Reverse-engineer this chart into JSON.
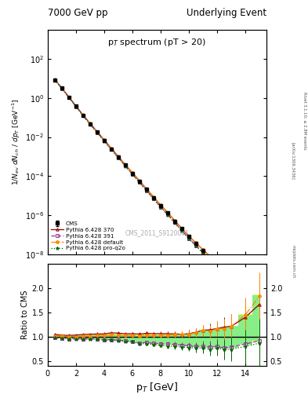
{
  "title_left": "7000 GeV pp",
  "title_right": "Underlying Event",
  "plot_title": "p$_T$ spectrum (pT > 20)",
  "xlabel": "p$_T$ [GeV]",
  "ylabel_main": "1/N$_{ev}$ dN$_{ch}$ / dp$_T$ [GeV$^{-1}$]",
  "ylabel_ratio": "Ratio to CMS",
  "watermark": "CMS_2011_S9120041",
  "right_label1": "Rivet 3.1.10; ≥ 2.8M events",
  "right_label2": "[arXiv:1306.3436]",
  "right_label3": "mcplots.cern.ch",
  "cms_x": [
    0.5,
    1.0,
    1.5,
    2.0,
    2.5,
    3.0,
    3.5,
    4.0,
    4.5,
    5.0,
    5.5,
    6.0,
    6.5,
    7.0,
    7.5,
    8.0,
    8.5,
    9.0,
    9.5,
    10.0,
    10.5,
    11.0,
    11.5,
    12.0,
    12.5,
    13.0,
    14.0,
    15.0
  ],
  "cms_y": [
    8.5,
    3.2,
    1.1,
    0.38,
    0.13,
    0.048,
    0.018,
    0.0068,
    0.0025,
    0.00095,
    0.00036,
    0.00014,
    5.5e-05,
    2.1e-05,
    8e-06,
    3.1e-06,
    1.3e-06,
    5e-07,
    2e-07,
    8e-08,
    3.5e-08,
    1.5e-08,
    7e-09,
    3e-09,
    1.5e-09,
    7e-10,
    2e-10,
    6e-11
  ],
  "cms_yerr": [
    0.25,
    0.09,
    0.032,
    0.011,
    0.004,
    0.0015,
    0.00055,
    0.00021,
    7.5e-05,
    2.9e-05,
    1.1e-05,
    4.3e-06,
    1.7e-06,
    6.5e-07,
    2.5e-07,
    9.5e-08,
    4e-08,
    1.5e-08,
    6e-09,
    2.4e-09,
    1.1e-09,
    4.5e-10,
    2.1e-10,
    9e-11,
    4.5e-11,
    2.1e-11,
    6e-12,
    1.8e-12
  ],
  "py370_x": [
    0.5,
    1.0,
    1.5,
    2.0,
    2.5,
    3.0,
    3.5,
    4.0,
    4.5,
    5.0,
    5.5,
    6.0,
    6.5,
    7.0,
    7.5,
    8.0,
    8.5,
    9.0,
    9.5,
    10.0,
    10.5,
    11.0,
    11.5,
    12.0,
    12.5,
    13.0,
    14.0,
    15.0
  ],
  "py370_y": [
    8.9,
    3.3,
    1.13,
    0.393,
    0.136,
    0.0505,
    0.019,
    0.0072,
    0.0027,
    0.00102,
    0.000382,
    0.000149,
    5.8e-05,
    2.25e-05,
    8.5e-06,
    3.3e-06,
    1.38e-06,
    5.3e-07,
    2.1e-07,
    8.5e-08,
    3.82e-08,
    1.7e-08,
    8e-09,
    3.5e-09,
    1.8e-09,
    8.5e-10,
    2.8e-10,
    1e-10
  ],
  "py391_x": [
    0.5,
    1.0,
    1.5,
    2.0,
    2.5,
    3.0,
    3.5,
    4.0,
    4.5,
    5.0,
    5.5,
    6.0,
    6.5,
    7.0,
    7.5,
    8.0,
    8.5,
    9.0,
    9.5,
    10.0,
    10.5,
    11.0,
    11.5,
    12.0,
    12.5,
    13.0,
    14.0,
    15.0
  ],
  "py391_y": [
    8.4,
    3.1,
    1.05,
    0.365,
    0.124,
    0.046,
    0.0172,
    0.0064,
    0.00235,
    0.00088,
    0.00033,
    0.000126,
    4.8e-05,
    1.85e-05,
    6.9e-06,
    2.65e-06,
    1.1e-06,
    4.2e-07,
    1.65e-07,
    6.5e-08,
    2.8e-08,
    1.2e-08,
    5.5e-09,
    2.4e-09,
    1.15e-09,
    5.5e-10,
    1.7e-10,
    5.5e-11
  ],
  "pydef_x": [
    0.5,
    1.0,
    1.5,
    2.0,
    2.5,
    3.0,
    3.5,
    4.0,
    4.5,
    5.0,
    5.5,
    6.0,
    6.5,
    7.0,
    7.5,
    8.0,
    8.5,
    9.0,
    9.5,
    10.0,
    10.5,
    11.0,
    11.5,
    12.0,
    12.5,
    13.0,
    14.0,
    15.0
  ],
  "pydef_y": [
    8.6,
    3.25,
    1.1,
    0.38,
    0.131,
    0.049,
    0.0185,
    0.007,
    0.0026,
    0.00098,
    0.00037,
    0.000144,
    5.6e-05,
    2.18e-05,
    8.2e-06,
    3.2e-06,
    1.35e-06,
    5.2e-07,
    2.1e-07,
    8.4e-08,
    3.8e-08,
    1.7e-08,
    7.8e-09,
    3.5e-09,
    1.75e-09,
    8.5e-10,
    2.9e-10,
    1.1e-10
  ],
  "pyq2o_x": [
    0.5,
    1.0,
    1.5,
    2.0,
    2.5,
    3.0,
    3.5,
    4.0,
    4.5,
    5.0,
    5.5,
    6.0,
    6.5,
    7.0,
    7.5,
    8.0,
    8.5,
    9.0,
    9.5,
    10.0,
    10.5,
    11.0,
    11.5,
    12.0,
    12.5,
    13.0,
    14.0,
    15.0
  ],
  "pyq2o_y": [
    8.3,
    3.1,
    1.05,
    0.363,
    0.124,
    0.0456,
    0.017,
    0.0063,
    0.00232,
    0.00087,
    0.000325,
    0.000125,
    4.7e-05,
    1.8e-05,
    6.7e-06,
    2.55e-06,
    1.05e-06,
    4e-07,
    1.58e-07,
    6.2e-08,
    2.7e-08,
    1.15e-08,
    5.2e-09,
    2.3e-09,
    1.1e-09,
    5.2e-10,
    1.6e-10,
    5.2e-11
  ],
  "py370_ratio": [
    1.047,
    1.031,
    1.027,
    1.034,
    1.046,
    1.052,
    1.056,
    1.059,
    1.08,
    1.074,
    1.061,
    1.064,
    1.055,
    1.071,
    1.063,
    1.065,
    1.062,
    1.06,
    1.05,
    1.0625,
    1.091,
    1.133,
    1.143,
    1.167,
    1.2,
    1.214,
    1.4,
    1.667
  ],
  "py391_ratio": [
    0.988,
    0.969,
    0.955,
    0.961,
    0.954,
    0.958,
    0.956,
    0.941,
    0.94,
    0.926,
    0.917,
    0.9,
    0.873,
    0.881,
    0.863,
    0.855,
    0.846,
    0.84,
    0.825,
    0.8125,
    0.8,
    0.8,
    0.786,
    0.8,
    0.767,
    0.786,
    0.85,
    0.917
  ],
  "pydef_ratio": [
    1.012,
    1.016,
    1.0,
    1.0,
    1.008,
    1.021,
    1.028,
    1.029,
    1.04,
    1.032,
    1.028,
    1.029,
    1.018,
    1.038,
    1.025,
    1.032,
    1.038,
    1.04,
    1.05,
    1.05,
    1.086,
    1.133,
    1.114,
    1.167,
    1.167,
    1.214,
    1.45,
    1.833
  ],
  "pyq2o_ratio": [
    0.976,
    0.969,
    0.955,
    0.955,
    0.954,
    0.95,
    0.944,
    0.926,
    0.928,
    0.916,
    0.903,
    0.893,
    0.855,
    0.857,
    0.838,
    0.823,
    0.808,
    0.8,
    0.79,
    0.775,
    0.771,
    0.767,
    0.743,
    0.767,
    0.733,
    0.743,
    0.8,
    0.867
  ],
  "py370_rerr": [
    0.02,
    0.018,
    0.016,
    0.015,
    0.016,
    0.017,
    0.018,
    0.019,
    0.022,
    0.023,
    0.025,
    0.027,
    0.03,
    0.033,
    0.038,
    0.042,
    0.048,
    0.055,
    0.065,
    0.075,
    0.09,
    0.11,
    0.13,
    0.16,
    0.2,
    0.25,
    0.35,
    0.5
  ],
  "py391_rerr": [
    0.02,
    0.018,
    0.016,
    0.015,
    0.016,
    0.017,
    0.018,
    0.019,
    0.022,
    0.023,
    0.025,
    0.027,
    0.03,
    0.033,
    0.038,
    0.042,
    0.048,
    0.055,
    0.065,
    0.075,
    0.09,
    0.11,
    0.13,
    0.16,
    0.2,
    0.25,
    0.35,
    0.5
  ],
  "pydef_rerr": [
    0.02,
    0.018,
    0.016,
    0.015,
    0.016,
    0.017,
    0.018,
    0.019,
    0.022,
    0.023,
    0.025,
    0.027,
    0.03,
    0.033,
    0.038,
    0.042,
    0.048,
    0.055,
    0.065,
    0.075,
    0.09,
    0.11,
    0.13,
    0.16,
    0.2,
    0.25,
    0.35,
    0.5
  ],
  "pyq2o_rerr": [
    0.02,
    0.018,
    0.016,
    0.015,
    0.016,
    0.017,
    0.018,
    0.019,
    0.022,
    0.023,
    0.025,
    0.027,
    0.03,
    0.033,
    0.038,
    0.042,
    0.048,
    0.055,
    0.065,
    0.075,
    0.09,
    0.11,
    0.13,
    0.16,
    0.2,
    0.25,
    0.35,
    0.5
  ],
  "band_x": [
    0.5,
    1.0,
    1.5,
    2.0,
    2.5,
    3.0,
    3.5,
    4.0,
    4.5,
    5.0,
    5.5,
    6.0,
    6.5,
    7.0,
    7.5,
    8.0,
    8.5,
    9.0,
    9.5,
    10.0,
    10.5,
    11.0,
    11.5,
    12.0,
    12.5,
    13.0,
    14.0,
    15.0
  ],
  "band_ylo": [
    0.97,
    0.965,
    0.959,
    0.96,
    0.956,
    0.956,
    0.952,
    0.936,
    0.934,
    0.921,
    0.908,
    0.894,
    0.864,
    0.869,
    0.85,
    0.84,
    0.831,
    0.825,
    0.812,
    0.799,
    0.784,
    0.781,
    0.768,
    0.782,
    0.748,
    0.769,
    0.828,
    0.898
  ],
  "band_yhi": [
    1.05,
    1.038,
    1.032,
    1.035,
    1.042,
    1.044,
    1.05,
    1.053,
    1.06,
    1.056,
    1.051,
    1.05,
    1.04,
    1.056,
    1.046,
    1.05,
    1.058,
    1.056,
    1.063,
    1.065,
    1.098,
    1.148,
    1.141,
    1.181,
    1.198,
    1.227,
    1.465,
    1.865
  ],
  "band2_ylo": [
    0.98,
    0.973,
    0.967,
    0.968,
    0.964,
    0.964,
    0.96,
    0.946,
    0.942,
    0.93,
    0.918,
    0.904,
    0.876,
    0.879,
    0.86,
    0.85,
    0.841,
    0.835,
    0.822,
    0.809,
    0.794,
    0.792,
    0.779,
    0.792,
    0.758,
    0.779,
    0.839,
    0.909
  ],
  "band2_yhi": [
    1.04,
    1.028,
    1.022,
    1.025,
    1.032,
    1.034,
    1.04,
    1.043,
    1.05,
    1.046,
    1.041,
    1.04,
    1.03,
    1.046,
    1.036,
    1.04,
    1.048,
    1.046,
    1.053,
    1.055,
    1.088,
    1.138,
    1.131,
    1.171,
    1.188,
    1.217,
    1.455,
    1.855
  ],
  "colors": {
    "cms": "#000000",
    "py370": "#990000",
    "py391": "#993399",
    "pydef": "#ff8800",
    "pyq2o": "#006600",
    "band_yellow": "#ffff44",
    "band_green": "#88ee88"
  },
  "xlim": [
    0,
    15.5
  ],
  "ylim_main": [
    1e-08,
    3000.0
  ],
  "ylim_ratio": [
    0.4,
    2.5
  ],
  "ratio_yticks": [
    0.5,
    1.0,
    1.5,
    2.0
  ],
  "main_xticks": [
    0,
    2,
    4,
    6,
    8,
    10,
    12,
    14
  ],
  "ratio_xticks": [
    0,
    2,
    4,
    6,
    8,
    10,
    12,
    14
  ]
}
